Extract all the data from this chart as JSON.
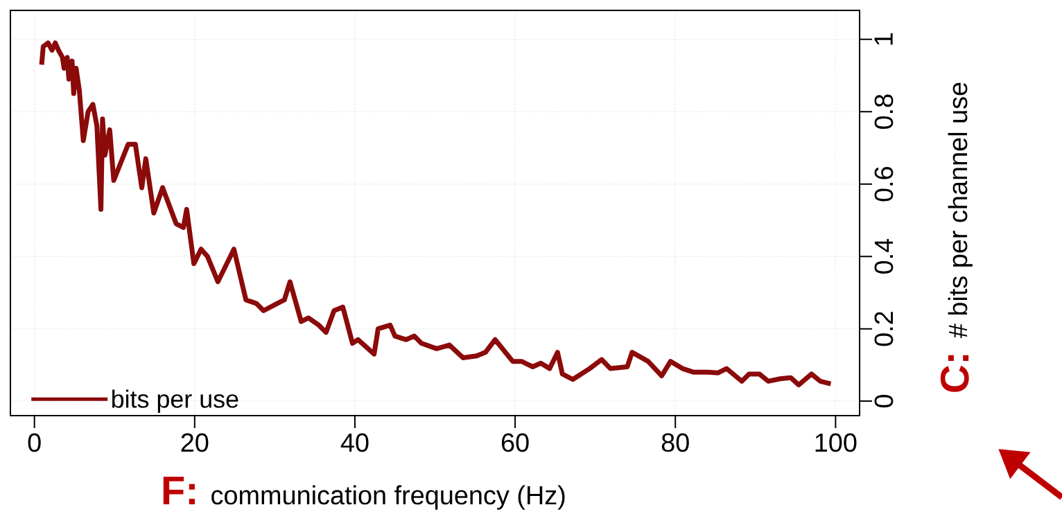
{
  "chart_data": {
    "type": "line",
    "xlabel": "communication frequency (Hz)",
    "ylabel": "# bits per channel use",
    "annotations": [
      "F:",
      "C:"
    ],
    "xlim": [
      -3,
      103
    ],
    "ylim": [
      -0.04,
      1.08
    ],
    "xticks": [
      0,
      20,
      40,
      60,
      80,
      100
    ],
    "yticks": [
      0,
      0.2,
      0.4,
      0.6,
      0.8,
      1
    ],
    "grid": true,
    "legend": "bottom left",
    "series": [
      {
        "name": "bits per use",
        "color": "#8b0a0a",
        "line_style": "solid",
        "x": [
          0.9,
          1.1,
          1.7,
          2.2,
          2.6,
          3.0,
          3.5,
          3.7,
          4.1,
          4.3,
          4.7,
          4.9,
          5.2,
          5.6,
          6.1,
          6.7,
          7.3,
          7.8,
          8.3,
          8.5,
          8.8,
          9.4,
          9.9,
          11.7,
          12.6,
          13.4,
          13.9,
          14.9,
          16.0,
          17.7,
          18.6,
          19.0,
          19.9,
          20.8,
          21.6,
          22.9,
          24.9,
          26.4,
          27.7,
          28.6,
          30.3,
          31.2,
          31.9,
          33.3,
          34.2,
          35.5,
          36.4,
          37.4,
          38.5,
          39.7,
          40.4,
          42.4,
          42.9,
          44.4,
          45.0,
          46.4,
          47.4,
          48.3,
          50.2,
          51.8,
          53.5,
          55.2,
          56.3,
          57.5,
          59.7,
          60.8,
          62.2,
          63.2,
          64.3,
          65.3,
          65.9,
          67.2,
          69.3,
          70.8,
          71.9,
          74.0,
          74.6,
          76.6,
          78.3,
          79.4,
          80.9,
          82.3,
          84.0,
          85.3,
          86.4,
          88.3,
          89.2,
          90.5,
          91.6,
          93.1,
          94.4,
          95.4,
          97.0,
          98.1,
          99.4
        ],
        "values": [
          0.93,
          0.98,
          0.99,
          0.97,
          0.99,
          0.97,
          0.95,
          0.92,
          0.95,
          0.89,
          0.94,
          0.85,
          0.92,
          0.86,
          0.72,
          0.8,
          0.82,
          0.76,
          0.53,
          0.78,
          0.68,
          0.75,
          0.61,
          0.71,
          0.71,
          0.59,
          0.67,
          0.52,
          0.59,
          0.49,
          0.48,
          0.53,
          0.38,
          0.42,
          0.4,
          0.33,
          0.42,
          0.28,
          0.27,
          0.25,
          0.27,
          0.28,
          0.33,
          0.22,
          0.23,
          0.21,
          0.19,
          0.25,
          0.26,
          0.16,
          0.17,
          0.13,
          0.2,
          0.21,
          0.18,
          0.17,
          0.18,
          0.16,
          0.145,
          0.155,
          0.12,
          0.125,
          0.135,
          0.17,
          0.11,
          0.11,
          0.095,
          0.105,
          0.09,
          0.135,
          0.075,
          0.06,
          0.09,
          0.115,
          0.09,
          0.095,
          0.135,
          0.11,
          0.07,
          0.11,
          0.09,
          0.08,
          0.08,
          0.078,
          0.09,
          0.055,
          0.075,
          0.075,
          0.055,
          0.062,
          0.065,
          0.045,
          0.075,
          0.055,
          0.048
        ]
      }
    ]
  }
}
